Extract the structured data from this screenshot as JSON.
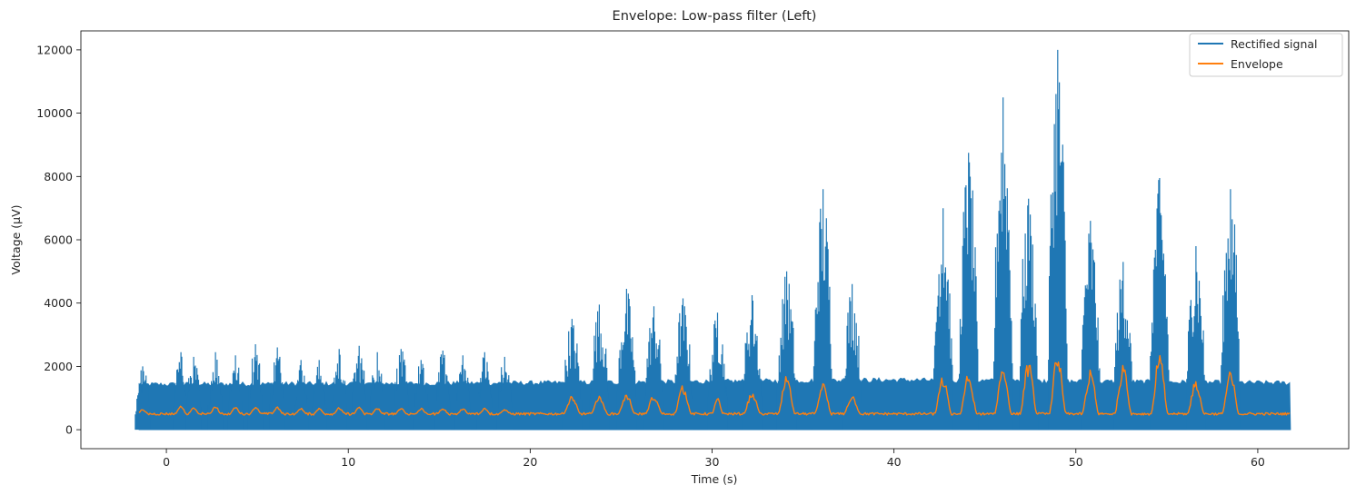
{
  "chart_data": {
    "type": "line",
    "title": "Envelope: Low-pass filter (Left)",
    "xlabel": "Time (s)",
    "ylabel": "Voltage (μV)",
    "xlim": [
      -4.7,
      65
    ],
    "ylim": [
      -600,
      12600
    ],
    "xticks": [
      0,
      10,
      20,
      30,
      40,
      50,
      60
    ],
    "yticks": [
      0,
      2000,
      4000,
      6000,
      8000,
      10000,
      12000
    ],
    "grid": false,
    "legend_position": "top-right",
    "colors": {
      "rectified": "#1f77b4",
      "envelope": "#ff7f0e"
    },
    "series": [
      {
        "name": "Rectified signal",
        "kind": "rectified-burst-signal",
        "x_range": [
          -1.5,
          61.8
        ],
        "baseline_band": [
          [
            -1.5,
            1500
          ],
          [
            20.5,
            1550
          ],
          [
            40.0,
            1650
          ],
          [
            61.8,
            1550
          ]
        ],
        "bursts": [
          {
            "t": -1.3,
            "peak": 2000
          },
          {
            "t": 0.8,
            "peak": 2450
          },
          {
            "t": 1.5,
            "peak": 2300
          },
          {
            "t": 2.7,
            "peak": 2450
          },
          {
            "t": 3.8,
            "peak": 2350
          },
          {
            "t": 4.9,
            "peak": 2700
          },
          {
            "t": 6.1,
            "peak": 2600
          },
          {
            "t": 7.4,
            "peak": 2200
          },
          {
            "t": 8.4,
            "peak": 2200
          },
          {
            "t": 9.5,
            "peak": 2550
          },
          {
            "t": 10.6,
            "peak": 2650
          },
          {
            "t": 11.6,
            "peak": 2450
          },
          {
            "t": 12.9,
            "peak": 2550
          },
          {
            "t": 14.0,
            "peak": 2200
          },
          {
            "t": 15.2,
            "peak": 2500
          },
          {
            "t": 16.3,
            "peak": 2350
          },
          {
            "t": 17.5,
            "peak": 2450
          },
          {
            "t": 18.6,
            "peak": 2300
          },
          {
            "t": 22.3,
            "peak": 3500
          },
          {
            "t": 23.8,
            "peak": 3950
          },
          {
            "t": 25.3,
            "peak": 4450
          },
          {
            "t": 26.8,
            "peak": 3900
          },
          {
            "t": 28.4,
            "peak": 4150
          },
          {
            "t": 30.3,
            "peak": 3700
          },
          {
            "t": 32.2,
            "peak": 4250
          },
          {
            "t": 34.1,
            "peak": 5000
          },
          {
            "t": 36.1,
            "peak": 7600
          },
          {
            "t": 37.7,
            "peak": 4600
          },
          {
            "t": 42.7,
            "peak": 7000
          },
          {
            "t": 44.1,
            "peak": 8750
          },
          {
            "t": 46.0,
            "peak": 10500
          },
          {
            "t": 47.4,
            "peak": 7300
          },
          {
            "t": 49.0,
            "peak": 12000
          },
          {
            "t": 50.8,
            "peak": 6600
          },
          {
            "t": 52.6,
            "peak": 5300
          },
          {
            "t": 54.6,
            "peak": 7950
          },
          {
            "t": 56.6,
            "peak": 5800
          },
          {
            "t": 58.5,
            "peak": 7600
          }
        ]
      },
      {
        "name": "Envelope",
        "kind": "smoothed-envelope",
        "x_range": [
          -1.5,
          61.8
        ],
        "baseline_level": 500,
        "bursts": [
          {
            "t": -1.3,
            "peak": 650
          },
          {
            "t": 0.8,
            "peak": 750
          },
          {
            "t": 1.5,
            "peak": 700
          },
          {
            "t": 2.7,
            "peak": 750
          },
          {
            "t": 3.8,
            "peak": 720
          },
          {
            "t": 4.9,
            "peak": 750
          },
          {
            "t": 6.1,
            "peak": 720
          },
          {
            "t": 7.4,
            "peak": 680
          },
          {
            "t": 8.4,
            "peak": 680
          },
          {
            "t": 9.5,
            "peak": 700
          },
          {
            "t": 10.6,
            "peak": 720
          },
          {
            "t": 11.6,
            "peak": 690
          },
          {
            "t": 12.9,
            "peak": 700
          },
          {
            "t": 14.0,
            "peak": 680
          },
          {
            "t": 15.2,
            "peak": 690
          },
          {
            "t": 16.3,
            "peak": 680
          },
          {
            "t": 17.5,
            "peak": 690
          },
          {
            "t": 18.6,
            "peak": 660
          },
          {
            "t": 22.3,
            "peak": 1100
          },
          {
            "t": 23.8,
            "peak": 1100
          },
          {
            "t": 25.3,
            "peak": 1150
          },
          {
            "t": 26.8,
            "peak": 1100
          },
          {
            "t": 28.4,
            "peak": 1400
          },
          {
            "t": 30.3,
            "peak": 1000
          },
          {
            "t": 32.2,
            "peak": 1200
          },
          {
            "t": 34.1,
            "peak": 1700
          },
          {
            "t": 36.1,
            "peak": 1500
          },
          {
            "t": 37.7,
            "peak": 1100
          },
          {
            "t": 42.7,
            "peak": 1700
          },
          {
            "t": 44.1,
            "peak": 1800
          },
          {
            "t": 46.0,
            "peak": 2100
          },
          {
            "t": 47.4,
            "peak": 2200
          },
          {
            "t": 49.0,
            "peak": 2450
          },
          {
            "t": 50.8,
            "peak": 1900
          },
          {
            "t": 52.6,
            "peak": 2050
          },
          {
            "t": 54.6,
            "peak": 2450
          },
          {
            "t": 56.6,
            "peak": 1600
          },
          {
            "t": 58.5,
            "peak": 1850
          }
        ]
      }
    ]
  }
}
